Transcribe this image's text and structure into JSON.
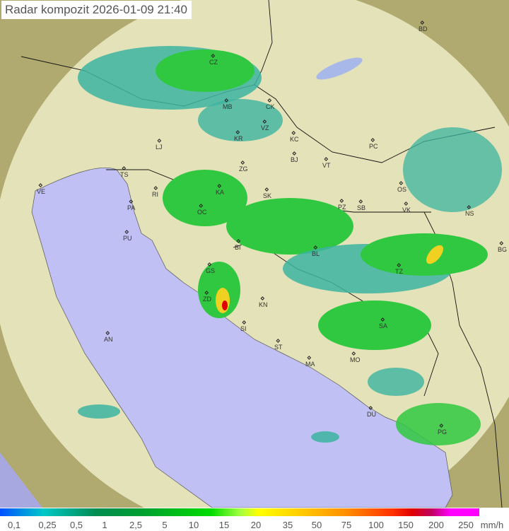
{
  "title": "Radar kompozit  2026-01-09   21:40",
  "legend": {
    "unit": "mm/h",
    "ticks": [
      "0,1",
      "0,25",
      "0,5",
      "1",
      "2,5",
      "5",
      "10",
      "15",
      "20",
      "35",
      "50",
      "75",
      "100",
      "150",
      "200",
      "250"
    ]
  },
  "colors": {
    "terrain": "#b8b27a",
    "coverage": "#e6e4bc",
    "sea": "#c0c0f4",
    "rain_light": "#3cb4a0",
    "rain_mid": "#30c840",
    "rain_heavy": "#f0d020",
    "rain_extreme": "#e00000"
  },
  "cities": [
    "CZ",
    "MB",
    "CK",
    "VZ",
    "KR",
    "KC",
    "PC",
    "LJ",
    "BJ",
    "VT",
    "ZG",
    "TS",
    "VE",
    "RI",
    "KA",
    "SK",
    "OS",
    "PA",
    "PZ",
    "SB",
    "VK",
    "NS",
    "OC",
    "PU",
    "BG",
    "BI",
    "BL",
    "GS",
    "TZ",
    "ZD",
    "KN",
    "SA",
    "AN",
    "SI",
    "ST",
    "MA",
    "MO",
    "DU",
    "PG",
    "BD"
  ]
}
